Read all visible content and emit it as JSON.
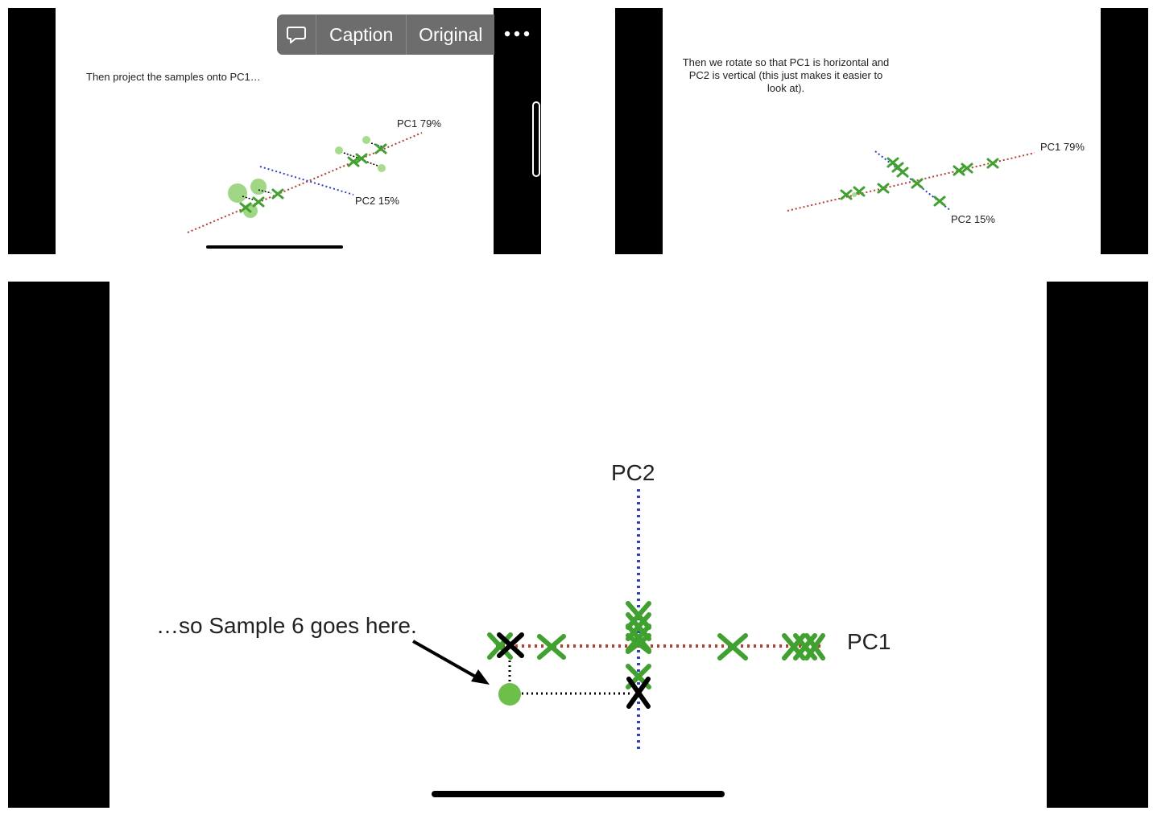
{
  "toolbar": {
    "caption_label": "Caption",
    "original_label": "Original",
    "more_icon": "ellipsis-icon",
    "comment_icon": "speech-bubble-icon"
  },
  "slides": {
    "slide1": {
      "text": "Then project the samples onto PC1…",
      "pc1_label": "PC1 79%",
      "pc2_label": "PC2 15%"
    },
    "slide2": {
      "text_line1": "Then we rotate so that PC1 is horizontal and",
      "text_line2": "PC2 is vertical (this just makes it easier to",
      "text_line3": "look at).",
      "pc1_label": "PC1 79%",
      "pc2_label": "PC2 15%"
    },
    "slide3": {
      "pc2_label": "PC2",
      "pc1_label": "PC1",
      "annotation": "…so Sample 6 goes here."
    }
  },
  "colors": {
    "pc1_line": "#c0392b",
    "pc2_line": "#2b3fd6",
    "sample_green": "#3fa22f",
    "point_green": "#6cc04a",
    "toolbar_bg": "#6d6d6d"
  }
}
